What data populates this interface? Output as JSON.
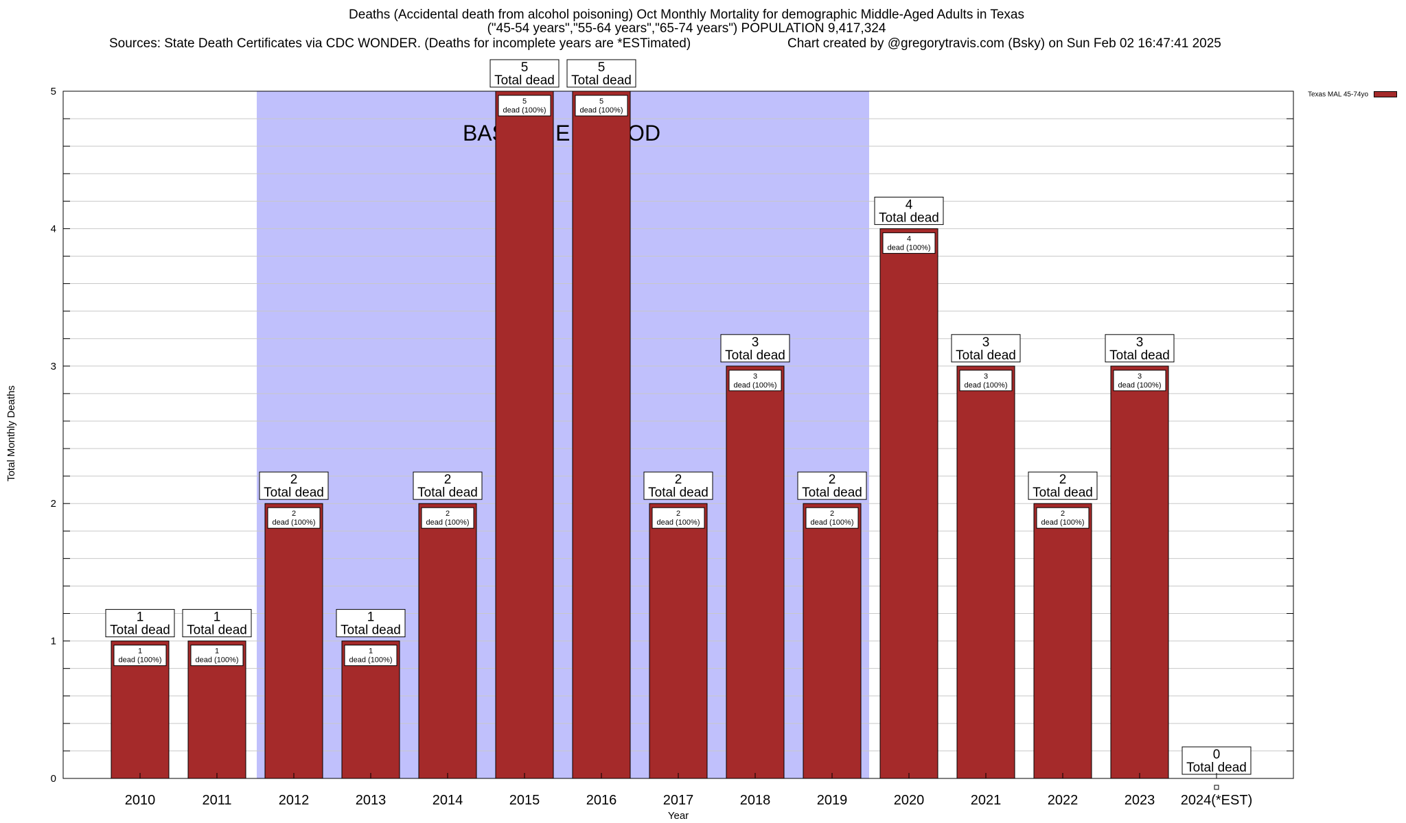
{
  "title": {
    "line1": "Deaths (Accidental death from alcohol poisoning) Oct Monthly Mortality for demographic Middle-Aged Adults in Texas",
    "line2": "(\"45-54 years\",\"55-64 years\",\"65-74 years\") POPULATION 9,417,324",
    "sources": "Sources: State Death Certificates via CDC WONDER. (Deaths for incomplete years are *ESTimated)",
    "credit": "Chart created by @gregorytravis.com (Bsky) on Sun Feb 02 16:47:41 2025"
  },
  "legend": {
    "label": "Texas MAL 45-74yo"
  },
  "colors": {
    "bar": "#a52a2a",
    "baseline": "#c0c0fc",
    "grid": "#c8c8c8"
  },
  "chart_data": {
    "type": "bar",
    "xlabel": "Year",
    "ylabel": "Total Monthly Deaths",
    "ylim": [
      0,
      5
    ],
    "yticks": [
      0,
      1,
      2,
      3,
      4,
      5
    ],
    "grid": true,
    "legend_position": "top-right",
    "categories": [
      "2010",
      "2011",
      "2012",
      "2013",
      "2014",
      "2015",
      "2016",
      "2017",
      "2018",
      "2019",
      "2020",
      "2021",
      "2022",
      "2023",
      "2024(*EST)"
    ],
    "series": [
      {
        "name": "Texas MAL 45-74yo",
        "values": [
          1,
          1,
          2,
          1,
          2,
          5,
          5,
          2,
          3,
          2,
          4,
          3,
          2,
          3,
          0
        ]
      }
    ],
    "total_label": "Total dead",
    "inner_labels": [
      "1 dead (100%)",
      "1 dead (100%)",
      "2 dead (100%)",
      "1 dead (100%)",
      "2 dead (100%)",
      "5 dead (100%)",
      "5 dead (100%)",
      "2 dead (100%)",
      "3 dead (100%)",
      "2 dead (100%)",
      "4 dead (100%)",
      "3 dead (100%)",
      "2 dead (100%)",
      "3 dead (100%)",
      ""
    ],
    "baseline_period": {
      "label": "BASELINE PERIOD",
      "start": "2012",
      "end": "2019"
    }
  }
}
